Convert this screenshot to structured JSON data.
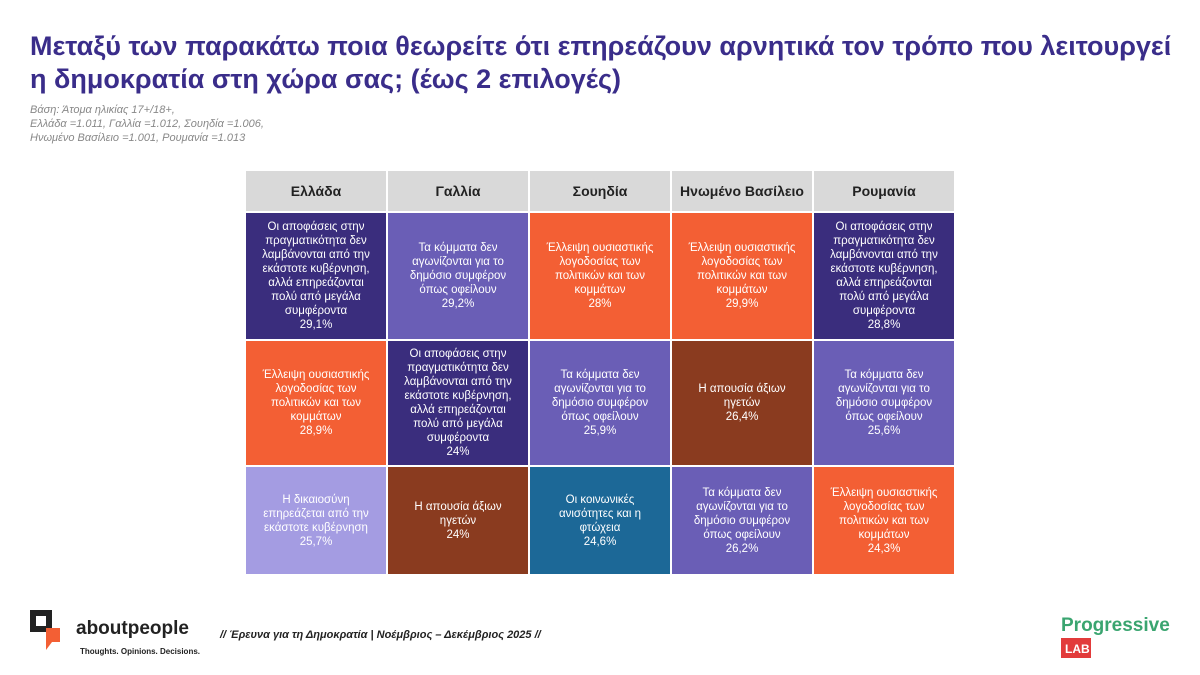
{
  "header": {
    "title": "Μεταξύ των παρακάτω ποια θεωρείτε ότι επηρεάζουν αρνητικά τον τρόπο που λειτουργεί η δημοκρατία στη χώρα σας; (έως 2 επιλογές)",
    "base": [
      "Βάση: Άτομα ηλικίας 17+/18+,",
      "Ελλάδα =1.011, Γαλλία =1.012, Σουηδία =1.006,",
      "Ηνωμένο Βασίλειο =1.001, Ρουμανία =1.013"
    ]
  },
  "table": {
    "columns": [
      "Ελλάδα",
      "Γαλλία",
      "Σουηδία",
      "Ηνωμένο Βασίλειο",
      "Ρουμανία"
    ],
    "rows": [
      [
        {
          "label": "Οι αποφάσεις στην πραγματικότητα δεν λαμβάνονται από την εκάστοτε κυβέρνηση, αλλά επηρεάζονται πολύ από μεγάλα συμφέροντα",
          "value": "29,1%",
          "color": "#3a2d7d"
        },
        {
          "label": "Τα κόμματα δεν αγωνίζονται για το δημόσιο συμφέρον όπως οφείλουν",
          "value": "29,2%",
          "color": "#6a5eb6"
        },
        {
          "label": "Έλλειψη ουσιαστικής λογοδοσίας των πολιτικών και των κομμάτων",
          "value": "28%",
          "color": "#f35f34"
        },
        {
          "label": "Έλλειψη ουσιαστικής λογοδοσίας των πολιτικών και των κομμάτων",
          "value": "29,9%",
          "color": "#f35f34"
        },
        {
          "label": "Οι αποφάσεις στην πραγματικότητα δεν λαμβάνονται από την εκάστοτε κυβέρνηση, αλλά επηρεάζονται πολύ από μεγάλα συμφέροντα",
          "value": "28,8%",
          "color": "#3a2d7d"
        }
      ],
      [
        {
          "label": "Έλλειψη ουσιαστικής λογοδοσίας των πολιτικών και των κομμάτων",
          "value": "28,9%",
          "color": "#f35f34"
        },
        {
          "label": "Οι αποφάσεις στην πραγματικότητα δεν λαμβάνονται από την εκάστοτε κυβέρνηση, αλλά επηρεάζονται πολύ από μεγάλα συμφέροντα",
          "value": "24%",
          "color": "#3a2d7d"
        },
        {
          "label": "Τα κόμματα δεν αγωνίζονται για το δημόσιο συμφέρον όπως οφείλουν",
          "value": "25,9%",
          "color": "#6a5eb6"
        },
        {
          "label": "Η απουσία άξιων ηγετών",
          "value": "26,4%",
          "color": "#8a3b1f"
        },
        {
          "label": "Τα κόμματα δεν αγωνίζονται για το δημόσιο συμφέρον όπως οφείλουν",
          "value": "25,6%",
          "color": "#6a5eb6"
        }
      ],
      [
        {
          "label": "Η δικαιοσύνη επηρεάζεται από την εκάστοτε κυβέρνηση",
          "value": "25,7%",
          "color": "#a49ce2"
        },
        {
          "label": "Η απουσία άξιων ηγετών",
          "value": "24%",
          "color": "#8a3b1f"
        },
        {
          "label": "Οι κοινωνικές ανισότητες και η φτώχεια",
          "value": "24,6%",
          "color": "#1c6897"
        },
        {
          "label": "Τα κόμματα δεν αγωνίζονται για το δημόσιο συμφέρον όπως οφείλουν",
          "value": "26,2%",
          "color": "#6a5eb6"
        },
        {
          "label": "Έλλειψη ουσιαστικής λογοδοσίας των πολιτικών και των κομμάτων",
          "value": "24,3%",
          "color": "#f35f34"
        }
      ]
    ]
  },
  "footer": {
    "brand": "aboutpeople",
    "tagline": "Thoughts. Opinions. Decisions.",
    "survey": "// Έρευνα για τη Δημοκρατία | Νοέμβριος – Δεκέμβριος 2025 //",
    "partner": "Progressive",
    "partner_tag": "LAB"
  }
}
